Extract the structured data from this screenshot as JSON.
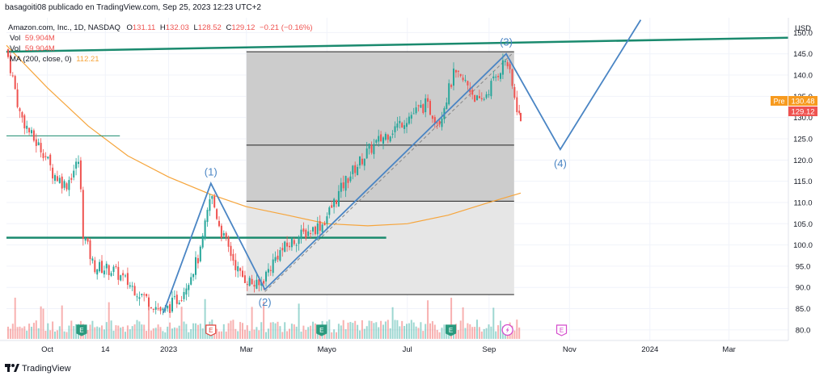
{
  "header": {
    "publisher": "basagoiti08 publicado en TradingView.com, Sep 25, 2023 12:23 UTC+2",
    "symbol": "Amazon.com, Inc., 1D, NASDAQ",
    "ohlc": [
      {
        "k": "O",
        "v": "131.11"
      },
      {
        "k": "H",
        "v": "132.03"
      },
      {
        "k": "L",
        "v": "128.52"
      },
      {
        "k": "C",
        "v": "129.12"
      },
      {
        "k": "",
        "v": "−0.21 (−0.16%)"
      }
    ],
    "vol_label": "Vol",
    "vol_value": "59.904M",
    "vol2_label": "Vol",
    "vol2_value": "59.904M",
    "ma_label": "MA (200, close, 0)",
    "ma_value": "112.21"
  },
  "axis": {
    "currency": "USD"
  },
  "price_tags": {
    "pre_label": "Pre",
    "pre_value": "130.48",
    "last_value": "129.12"
  },
  "wave_labels": [
    "(1)",
    "(2)",
    "(3)",
    "(4)"
  ],
  "footer": {
    "brand": "TradingView"
  },
  "colors": {
    "up": "#26a69a",
    "down": "#ef5350",
    "ma": "#f6a53c",
    "wave": "#4a85c4",
    "trend": "#1a8a6e",
    "box_dark": "#cccccc",
    "box_light": "#e6e6e6",
    "pre_bg": "#f79a1e",
    "last_bg": "#ef5350",
    "earnings": "#2b9a7e",
    "event_e": "#e0413a",
    "dividend": "#d44bcc"
  },
  "chart_data": {
    "type": "candlestick",
    "symbol": "AMZN",
    "title": "Amazon.com, Inc., 1D, NASDAQ",
    "x_ticks": [
      "Oct",
      "14",
      "2023",
      "Mar",
      "Mayo",
      "Jul",
      "Sep",
      "Nov",
      "2024",
      "Mar"
    ],
    "y_ticks": [
      80,
      85,
      90,
      95,
      100,
      105,
      110,
      115,
      120,
      125,
      130,
      135,
      140,
      145,
      150
    ],
    "ylim": [
      77.5,
      153.5
    ],
    "series": [
      {
        "name": "Price",
        "points": [
          {
            "t": "2022-08-31",
            "close": 146
          },
          {
            "t": "2022-09-05",
            "close": 139
          },
          {
            "t": "2022-09-10",
            "close": 131
          },
          {
            "t": "2022-09-20",
            "close": 125
          },
          {
            "t": "2022-09-28",
            "close": 122
          },
          {
            "t": "2022-10-05",
            "close": 117
          },
          {
            "t": "2022-10-15",
            "close": 114
          },
          {
            "t": "2022-10-25",
            "close": 120
          },
          {
            "t": "2022-10-28",
            "close": 103
          },
          {
            "t": "2022-11-05",
            "close": 95
          },
          {
            "t": "2022-11-20",
            "close": 94
          },
          {
            "t": "2022-12-05",
            "close": 90
          },
          {
            "t": "2022-12-28",
            "close": 84
          },
          {
            "t": "2023-01-10",
            "close": 88
          },
          {
            "t": "2023-01-25",
            "close": 98
          },
          {
            "t": "2023-02-02",
            "close": 112
          },
          {
            "t": "2023-02-10",
            "close": 103
          },
          {
            "t": "2023-02-24",
            "close": 93
          },
          {
            "t": "2023-03-10",
            "close": 90
          },
          {
            "t": "2023-03-25",
            "close": 98
          },
          {
            "t": "2023-04-10",
            "close": 102
          },
          {
            "t": "2023-04-28",
            "close": 105
          },
          {
            "t": "2023-05-15",
            "close": 115
          },
          {
            "t": "2023-06-01",
            "close": 122
          },
          {
            "t": "2023-06-15",
            "close": 126
          },
          {
            "t": "2023-07-01",
            "close": 130
          },
          {
            "t": "2023-07-15",
            "close": 133
          },
          {
            "t": "2023-07-25",
            "close": 129
          },
          {
            "t": "2023-08-05",
            "close": 140
          },
          {
            "t": "2023-08-15",
            "close": 138
          },
          {
            "t": "2023-08-25",
            "close": 133
          },
          {
            "t": "2023-09-05",
            "close": 139
          },
          {
            "t": "2023-09-14",
            "close": 144
          },
          {
            "t": "2023-09-20",
            "close": 135
          },
          {
            "t": "2023-09-25",
            "close": 129.12
          }
        ]
      },
      {
        "name": "MA (200, close, 0)",
        "points": [
          {
            "t": "2022-08-31",
            "close": 147
          },
          {
            "t": "2022-10-01",
            "close": 137
          },
          {
            "t": "2022-11-01",
            "close": 128
          },
          {
            "t": "2022-12-01",
            "close": 121
          },
          {
            "t": "2023-01-01",
            "close": 116
          },
          {
            "t": "2023-02-01",
            "close": 112
          },
          {
            "t": "2023-03-01",
            "close": 109
          },
          {
            "t": "2023-04-01",
            "close": 107
          },
          {
            "t": "2023-05-01",
            "close": 105
          },
          {
            "t": "2023-06-01",
            "close": 104.5
          },
          {
            "t": "2023-07-01",
            "close": 105
          },
          {
            "t": "2023-08-01",
            "close": 107
          },
          {
            "t": "2023-09-01",
            "close": 110
          },
          {
            "t": "2023-09-25",
            "close": 112.21
          }
        ]
      }
    ],
    "annotations": {
      "elliott_waves": [
        {
          "label": "start",
          "t": "2022-12-28",
          "y": 84
        },
        {
          "label": "(1)",
          "t": "2023-02-02",
          "y": 114.5
        },
        {
          "label": "(2)",
          "t": "2023-03-15",
          "y": 89.5
        },
        {
          "label": "(3)",
          "t": "2023-09-14",
          "y": 145
        },
        {
          "label": "(4)",
          "t": "2023-10-25",
          "y": 122.5
        },
        {
          "label": "end",
          "t": "2023-12-25",
          "y": 153
        }
      ],
      "horizontal_levels": [
        125.7,
        101.7
      ],
      "fib_levels": [
        145.5,
        123.5,
        110.3,
        88.3
      ]
    },
    "grid": true,
    "legend": "top-left"
  }
}
